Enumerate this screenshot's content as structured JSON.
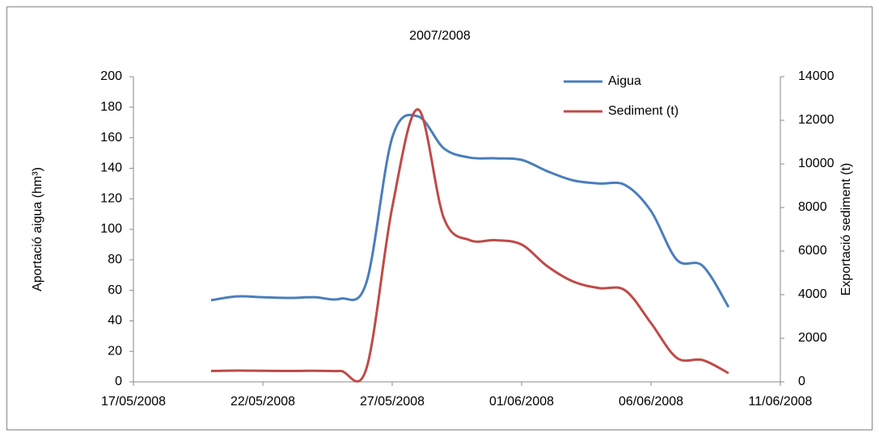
{
  "chart_data": {
    "type": "line",
    "title": "2007/2008",
    "y_label": "Aportació aigua (hm³)",
    "y2_label": "Exportació sediment  (t)",
    "x": [
      "20/05/2008",
      "21/05/2008",
      "22/05/2008",
      "23/05/2008",
      "24/05/2008",
      "25/05/2008",
      "26/05/2008",
      "27/05/2008",
      "28/05/2008",
      "29/05/2008",
      "30/05/2008",
      "31/05/2008",
      "01/06/2008",
      "02/06/2008",
      "03/06/2008",
      "04/06/2008",
      "05/06/2008",
      "06/06/2008",
      "07/06/2008",
      "08/06/2008",
      "09/06/2008"
    ],
    "series": [
      {
        "name": "Aigua",
        "color": "#4a7ebb",
        "axis": "y",
        "values": [
          53.5,
          56,
          55.5,
          55,
          55.5,
          54.5,
          65,
          160,
          174,
          153,
          147,
          146.5,
          145.5,
          138,
          132,
          130,
          129,
          112,
          80,
          76,
          49
        ]
      },
      {
        "name": "Sediment (t)",
        "color": "#be4b48",
        "axis": "y2",
        "values": [
          500,
          520,
          510,
          500,
          510,
          500,
          600,
          8000,
          12500,
          7500,
          6500,
          6500,
          6300,
          5300,
          4600,
          4300,
          4200,
          2700,
          1100,
          1000,
          400
        ]
      }
    ],
    "xlim": [
      "17/05/2008",
      "11/06/2008"
    ],
    "xticks": [
      "17/05/2008",
      "22/05/2008",
      "27/05/2008",
      "01/06/2008",
      "06/06/2008",
      "11/06/2008"
    ],
    "ylim": [
      0,
      200
    ],
    "yticks": [
      0,
      20,
      40,
      60,
      80,
      100,
      120,
      140,
      160,
      180,
      200
    ],
    "y2lim": [
      0,
      14000
    ],
    "y2ticks": [
      0,
      2000,
      4000,
      6000,
      8000,
      10000,
      12000,
      14000
    ],
    "legend": "top-right",
    "grid": false
  }
}
